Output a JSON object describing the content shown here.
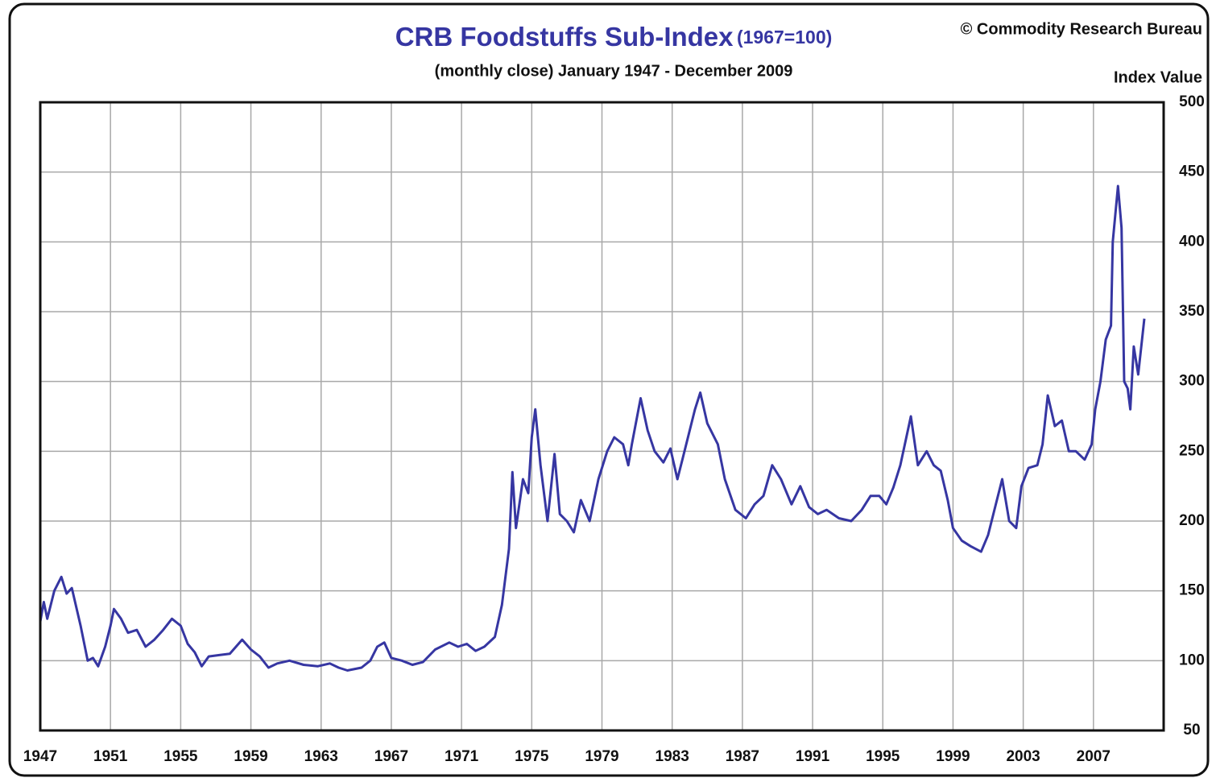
{
  "chart_data": {
    "type": "line",
    "title": "CRB Foodstuffs Sub-Index",
    "title_note": "(1967=100)",
    "subtitle": "(monthly close) January 1947 - December 2009",
    "source": "© Commodity Research Bureau",
    "y_axis_label": "Index Value",
    "color": "#3636a2",
    "grid": true,
    "xlim": [
      1947,
      2011
    ],
    "xticks": [
      1947,
      1951,
      1955,
      1959,
      1963,
      1967,
      1971,
      1975,
      1979,
      1983,
      1987,
      1991,
      1995,
      1999,
      2003,
      2007
    ],
    "ylim": [
      50,
      500
    ],
    "yticks": [
      50,
      100,
      150,
      200,
      250,
      300,
      350,
      400,
      450,
      500
    ],
    "x": [
      1947.0,
      1947.2,
      1947.4,
      1947.8,
      1948.2,
      1948.5,
      1948.8,
      1949.3,
      1949.7,
      1950.0,
      1950.3,
      1950.7,
      1951.0,
      1951.2,
      1951.6,
      1952.0,
      1952.5,
      1953.0,
      1953.5,
      1954.0,
      1954.5,
      1955.0,
      1955.4,
      1955.8,
      1956.2,
      1956.6,
      1957.2,
      1957.8,
      1958.5,
      1959.0,
      1959.5,
      1960.0,
      1960.5,
      1961.2,
      1962.0,
      1962.8,
      1963.5,
      1964.0,
      1964.5,
      1965.3,
      1965.8,
      1966.2,
      1966.6,
      1967.0,
      1967.6,
      1968.2,
      1968.8,
      1969.5,
      1970.3,
      1970.8,
      1971.3,
      1971.8,
      1972.3,
      1972.9,
      1973.3,
      1973.7,
      1973.9,
      1974.1,
      1974.5,
      1974.8,
      1975.0,
      1975.2,
      1975.5,
      1975.9,
      1976.3,
      1976.6,
      1977.0,
      1977.4,
      1977.8,
      1978.3,
      1978.8,
      1979.3,
      1979.7,
      1980.2,
      1980.5,
      1980.7,
      1981.2,
      1981.6,
      1982.0,
      1982.5,
      1982.9,
      1983.3,
      1983.6,
      1984.0,
      1984.3,
      1984.6,
      1985.0,
      1985.6,
      1986.0,
      1986.6,
      1987.2,
      1987.7,
      1988.2,
      1988.7,
      1989.2,
      1989.8,
      1990.3,
      1990.8,
      1991.3,
      1991.8,
      1992.5,
      1993.2,
      1993.8,
      1994.3,
      1994.8,
      1995.2,
      1995.6,
      1996.0,
      1996.6,
      1997.0,
      1997.5,
      1997.9,
      1998.3,
      1998.7,
      1999.0,
      1999.5,
      2000.0,
      2000.6,
      2001.0,
      2001.5,
      2001.8,
      2002.2,
      2002.6,
      2002.9,
      2003.3,
      2003.8,
      2004.1,
      2004.4,
      2004.8,
      2005.2,
      2005.6,
      2006.0,
      2006.5,
      2006.9,
      2007.1,
      2007.4,
      2007.7,
      2008.0,
      2008.1,
      2008.4,
      2008.6,
      2008.75,
      2008.95,
      2009.1,
      2009.3,
      2009.55,
      2009.9
    ],
    "values": [
      128,
      142,
      130,
      150,
      160,
      148,
      152,
      125,
      100,
      102,
      96,
      110,
      125,
      137,
      130,
      120,
      122,
      110,
      115,
      122,
      130,
      125,
      112,
      106,
      96,
      103,
      104,
      105,
      115,
      108,
      103,
      95,
      98,
      100,
      97,
      96,
      98,
      95,
      93,
      95,
      100,
      110,
      113,
      102,
      100,
      97,
      99,
      108,
      113,
      110,
      112,
      107,
      110,
      117,
      140,
      180,
      235,
      195,
      230,
      220,
      260,
      280,
      240,
      200,
      248,
      205,
      200,
      192,
      215,
      200,
      230,
      250,
      260,
      255,
      240,
      255,
      288,
      265,
      250,
      242,
      252,
      230,
      245,
      265,
      280,
      292,
      270,
      255,
      230,
      208,
      202,
      212,
      218,
      240,
      230,
      212,
      225,
      210,
      205,
      208,
      202,
      200,
      208,
      218,
      218,
      212,
      224,
      240,
      275,
      240,
      250,
      240,
      236,
      215,
      195,
      186,
      182,
      178,
      190,
      215,
      230,
      200,
      195,
      225,
      238,
      240,
      255,
      290,
      268,
      272,
      250,
      250,
      244,
      255,
      280,
      300,
      330,
      340,
      400,
      440,
      410,
      300,
      295,
      280,
      325,
      305,
      345
    ]
  }
}
